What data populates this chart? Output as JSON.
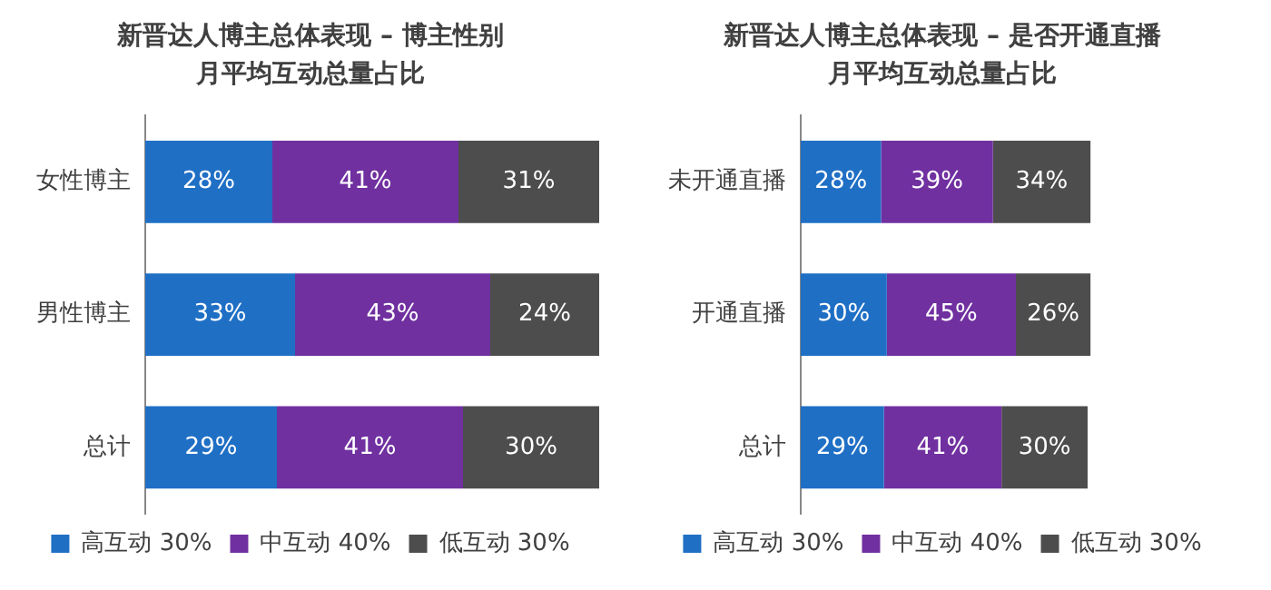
{
  "chart_data": [
    {
      "type": "bar",
      "title": "新晋达人博主总体表现 – 博主性别",
      "subtitle": "月平均互动总量占比",
      "orientation": "horizontal",
      "stacked": true,
      "legend": "bottom",
      "grid": false,
      "categories": [
        "女性博主",
        "男性博主",
        "总计"
      ],
      "series": [
        {
          "name": "高互动 30%",
          "color": "#1f6fc5",
          "values": [
            28,
            33,
            29
          ],
          "value_labels": [
            "28%",
            "33%",
            "29%"
          ]
        },
        {
          "name": "中互动 40%",
          "color": "#7030a0",
          "values": [
            41,
            43,
            41
          ],
          "value_labels": [
            "41%",
            "43%",
            "41%"
          ]
        },
        {
          "name": "低互动 30%",
          "color": "#4d4d4d",
          "values": [
            31,
            24,
            30
          ],
          "value_labels": [
            "31%",
            "24%",
            "30%"
          ]
        }
      ]
    },
    {
      "type": "bar",
      "title": "新晋达人博主总体表现 – 是否开通直播",
      "subtitle": "月平均互动总量占比",
      "orientation": "horizontal",
      "stacked": true,
      "legend": "bottom",
      "grid": false,
      "categories": [
        "未开通直播",
        "开通直播",
        "总计"
      ],
      "series": [
        {
          "name": "高互动 30%",
          "color": "#1f6fc5",
          "values": [
            28,
            30,
            29
          ],
          "value_labels": [
            "28%",
            "30%",
            "29%"
          ]
        },
        {
          "name": "中互动 40%",
          "color": "#7030a0",
          "values": [
            39,
            45,
            41
          ],
          "value_labels": [
            "39%",
            "45%",
            "41%"
          ]
        },
        {
          "name": "低互动 30%",
          "color": "#4d4d4d",
          "values": [
            34,
            26,
            30
          ],
          "value_labels": [
            "34%",
            "26%",
            "30%"
          ]
        }
      ]
    }
  ]
}
